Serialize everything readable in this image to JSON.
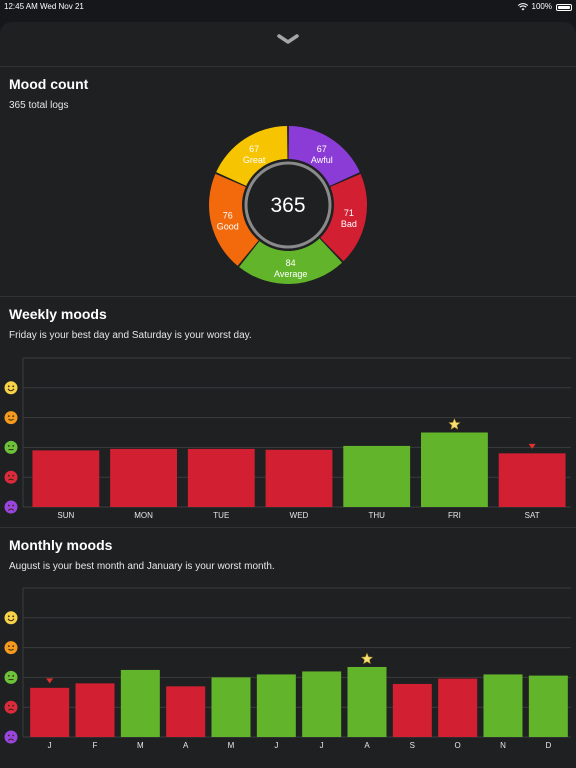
{
  "status_bar": {
    "time": "12:45 AM",
    "date": "Wed Nov 21",
    "battery": "100%"
  },
  "icons": {
    "collapse": "chevron-down-icon",
    "wifi": "wifi-icon",
    "battery": "battery-icon",
    "best": "star-icon",
    "worst": "down-triangle-icon"
  },
  "colors": {
    "great": "#f6c400",
    "good": "#f26a0c",
    "average": "#62b52b",
    "bad": "#d31f32",
    "awful": "#8c3cd6",
    "sheet_bg": "#1f2022"
  },
  "mood_count": {
    "title": "Mood count",
    "subtitle": "365 total logs",
    "total": "365",
    "segments": [
      {
        "label": "Awful",
        "count": 67,
        "color": "#8c3cd6"
      },
      {
        "label": "Bad",
        "count": 71,
        "color": "#d31f32"
      },
      {
        "label": "Average",
        "count": 84,
        "color": "#62b52b"
      },
      {
        "label": "Good",
        "count": 76,
        "color": "#f26a0c"
      },
      {
        "label": "Great",
        "count": 67,
        "color": "#f6c400"
      }
    ]
  },
  "mood_scale": [
    {
      "mood": "great",
      "icon": "grin-face-icon",
      "color": "#f7d34a"
    },
    {
      "mood": "good",
      "icon": "smile-face-icon",
      "color": "#f59a1f"
    },
    {
      "mood": "average",
      "icon": "neutral-face-icon",
      "color": "#6cc23a"
    },
    {
      "mood": "bad",
      "icon": "frown-face-icon",
      "color": "#dd2a3c"
    },
    {
      "mood": "awful",
      "icon": "sad-face-icon",
      "color": "#9a45e0"
    }
  ],
  "weekly": {
    "title": "Weekly moods",
    "subtitle": "Friday is your best day and Saturday is your worst day.",
    "chart_data": {
      "type": "bar",
      "categories": [
        "SUN",
        "MON",
        "TUE",
        "WED",
        "THU",
        "FRI",
        "SAT"
      ],
      "values": [
        2.9,
        2.95,
        2.95,
        2.92,
        3.05,
        3.5,
        2.8
      ],
      "colors": [
        "#d31f32",
        "#d31f32",
        "#d31f32",
        "#d31f32",
        "#62b52b",
        "#62b52b",
        "#d31f32"
      ],
      "ylim": [
        1,
        6
      ],
      "best_index": 5,
      "worst_index": 6,
      "grid": true
    }
  },
  "monthly": {
    "title": "Monthly moods",
    "subtitle": "August is your best month and January is your worst month.",
    "chart_data": {
      "type": "bar",
      "categories": [
        "J",
        "F",
        "M",
        "A",
        "M",
        "J",
        "J",
        "A",
        "S",
        "O",
        "N",
        "D"
      ],
      "values": [
        2.65,
        2.8,
        3.25,
        2.7,
        3.0,
        3.1,
        3.2,
        3.35,
        2.78,
        2.96,
        3.1,
        3.06
      ],
      "colors": [
        "#d31f32",
        "#d31f32",
        "#62b52b",
        "#d31f32",
        "#62b52b",
        "#62b52b",
        "#62b52b",
        "#62b52b",
        "#d31f32",
        "#d31f32",
        "#62b52b",
        "#62b52b"
      ],
      "ylim": [
        1,
        6
      ],
      "best_index": 7,
      "worst_index": 0,
      "grid": true
    }
  }
}
